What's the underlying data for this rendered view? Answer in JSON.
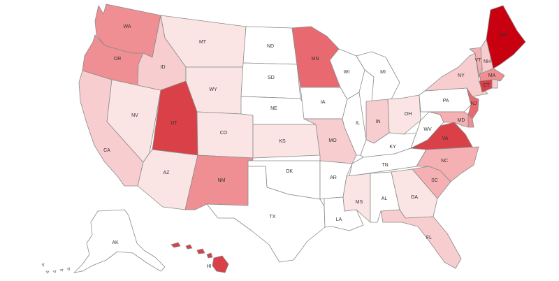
{
  "scale": {
    "colors": [
      "#ffffff",
      "#fbe4e4",
      "#f8cdcf",
      "#f5b0b3",
      "#f08f93",
      "#e86a70",
      "#d94048",
      "#c8000f"
    ]
  },
  "states": [
    {
      "code": "WA",
      "label": "WA",
      "level": 4
    },
    {
      "code": "OR",
      "label": "OR",
      "level": 4
    },
    {
      "code": "CA",
      "label": "CA",
      "level": 2
    },
    {
      "code": "NV",
      "label": "NV",
      "level": 1
    },
    {
      "code": "ID",
      "label": "ID",
      "level": 2
    },
    {
      "code": "MT",
      "label": "MT",
      "level": 1
    },
    {
      "code": "WY",
      "label": "WY",
      "level": 1
    },
    {
      "code": "UT",
      "label": "UT",
      "level": 6
    },
    {
      "code": "AZ",
      "label": "AZ",
      "level": 1
    },
    {
      "code": "CO",
      "label": "CO",
      "level": 1
    },
    {
      "code": "NM",
      "label": "NM",
      "level": 4
    },
    {
      "code": "ND",
      "label": "ND",
      "level": 0
    },
    {
      "code": "SD",
      "label": "SD",
      "level": 0
    },
    {
      "code": "NE",
      "label": "NE",
      "level": 0
    },
    {
      "code": "KS",
      "label": "KS",
      "level": 1
    },
    {
      "code": "OK",
      "label": "OK",
      "level": 0
    },
    {
      "code": "TX",
      "label": "TX",
      "level": 0
    },
    {
      "code": "MN",
      "label": "MN",
      "level": 5
    },
    {
      "code": "IA",
      "label": "IA",
      "level": 0
    },
    {
      "code": "MO",
      "label": "MO",
      "level": 2
    },
    {
      "code": "AR",
      "label": "AR",
      "level": 0
    },
    {
      "code": "LA",
      "label": "LA",
      "level": 0
    },
    {
      "code": "WI",
      "label": "WI",
      "level": 0
    },
    {
      "code": "IL",
      "label": "IL",
      "level": 0
    },
    {
      "code": "MI",
      "label": "MI",
      "level": 0
    },
    {
      "code": "IN",
      "label": "IN",
      "level": 2
    },
    {
      "code": "OH",
      "label": "OH",
      "level": 1
    },
    {
      "code": "KY",
      "label": "KY",
      "level": 0
    },
    {
      "code": "TN",
      "label": "TN",
      "level": 0
    },
    {
      "code": "MS",
      "label": "MS",
      "level": 1
    },
    {
      "code": "AL",
      "label": "AL",
      "level": 0
    },
    {
      "code": "GA",
      "label": "GA",
      "level": 1
    },
    {
      "code": "FL",
      "label": "FL",
      "level": 2
    },
    {
      "code": "SC",
      "label": "SC",
      "level": 3
    },
    {
      "code": "NC",
      "label": "NC",
      "level": 3
    },
    {
      "code": "VA",
      "label": "VA",
      "level": 6
    },
    {
      "code": "WV",
      "label": "WV",
      "level": 0
    },
    {
      "code": "PA",
      "label": "PA",
      "level": 0
    },
    {
      "code": "NY",
      "label": "NY",
      "level": 2
    },
    {
      "code": "VT",
      "label": "VT",
      "level": 3
    },
    {
      "code": "NH",
      "label": "NH",
      "level": 2
    },
    {
      "code": "ME",
      "label": "ME",
      "level": 7
    },
    {
      "code": "MA",
      "label": "MA",
      "level": 4
    },
    {
      "code": "RI",
      "label": "",
      "level": 2
    },
    {
      "code": "CT",
      "label": "CT",
      "level": 6
    },
    {
      "code": "NJ",
      "label": "NJ",
      "level": 5
    },
    {
      "code": "DE",
      "label": "",
      "level": 4
    },
    {
      "code": "MD",
      "label": "MD",
      "level": 3
    },
    {
      "code": "AK",
      "label": "AK",
      "level": 0
    },
    {
      "code": "HI",
      "label": "HI",
      "level": 6
    }
  ]
}
